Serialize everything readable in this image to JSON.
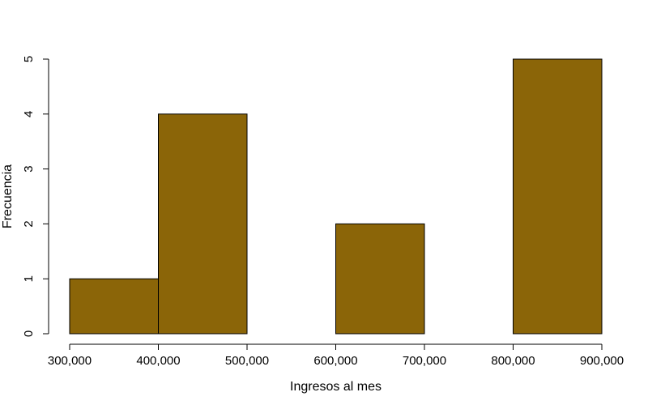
{
  "chart_data": {
    "type": "bar",
    "subtype": "histogram",
    "bins": [
      {
        "start": 300000,
        "end": 400000,
        "count": 1
      },
      {
        "start": 400000,
        "end": 500000,
        "count": 4
      },
      {
        "start": 500000,
        "end": 600000,
        "count": 0
      },
      {
        "start": 600000,
        "end": 700000,
        "count": 2
      },
      {
        "start": 700000,
        "end": 800000,
        "count": 0
      },
      {
        "start": 800000,
        "end": 900000,
        "count": 5
      }
    ],
    "xlabel": "Ingresos al mes",
    "ylabel": "Frecuencia",
    "xlim": [
      300000,
      900000
    ],
    "ylim": [
      0,
      5
    ],
    "x_ticks": [
      "300,000",
      "400,000",
      "500,000",
      "600,000",
      "700,000",
      "800,000",
      "900,000"
    ],
    "y_ticks": [
      "0",
      "1",
      "2",
      "3",
      "4",
      "5"
    ],
    "bar_color": "#8b6508",
    "grid": false
  }
}
